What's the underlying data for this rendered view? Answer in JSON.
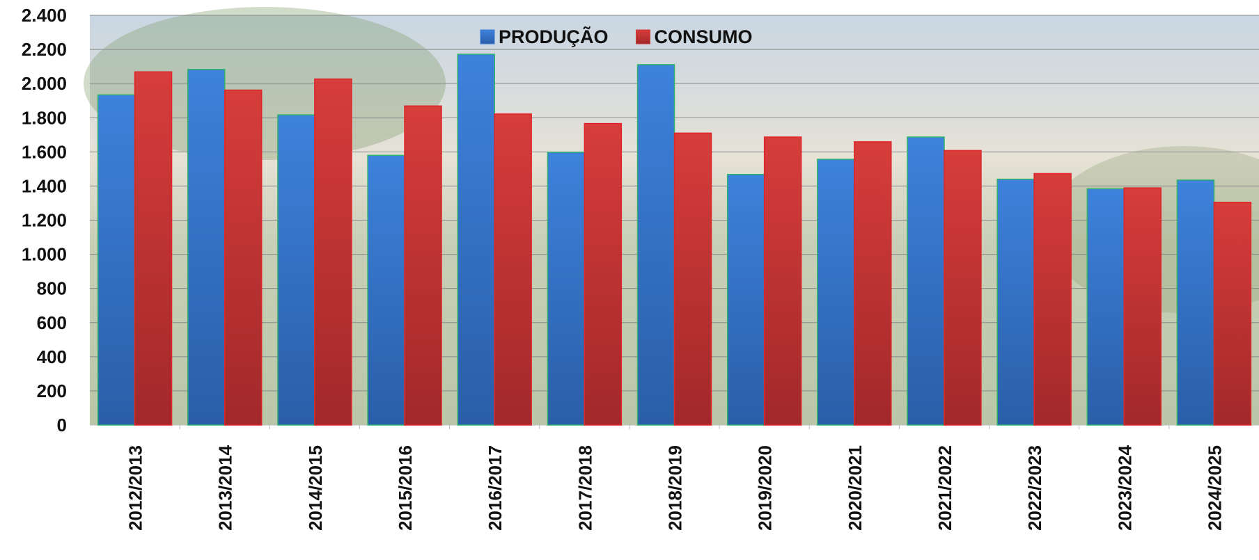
{
  "chart_data": {
    "type": "bar",
    "categories": [
      "2012/2013",
      "2013/2014",
      "2014/2015",
      "2015/2016",
      "2016/2017",
      "2017/2018",
      "2018/2019",
      "2019/2020",
      "2020/2021",
      "2021/2022",
      "2022/2023",
      "2023/2024",
      "2024/2025"
    ],
    "series": [
      {
        "name": "PRODUÇÃO",
        "color": "#3a7bd5",
        "values": [
          1934,
          2083,
          1817,
          1580,
          2172,
          1598,
          2111,
          1468,
          1557,
          1687,
          1440,
          1384,
          1435
        ]
      },
      {
        "name": "CONSUMO",
        "color": "#d0393a",
        "values": [
          2069,
          1962,
          2027,
          1869,
          1822,
          1766,
          1710,
          1687,
          1659,
          1608,
          1473,
          1389,
          1305
        ]
      }
    ],
    "ylim": [
      0,
      2400
    ],
    "yticks": [
      0,
      200,
      400,
      600,
      800,
      {
        "value": 1000,
        "label": "1.000"
      },
      {
        "value": 1200,
        "label": "1.200"
      },
      {
        "value": 1400,
        "label": "1.400"
      },
      {
        "value": 1600,
        "label": "1.600"
      },
      {
        "value": 1800,
        "label": "1.800"
      },
      {
        "value": 2000,
        "label": "2.000"
      },
      {
        "value": 2200,
        "label": "2.200"
      },
      {
        "value": 2400,
        "label": "2.400"
      }
    ],
    "grid": true,
    "legend": "top"
  }
}
